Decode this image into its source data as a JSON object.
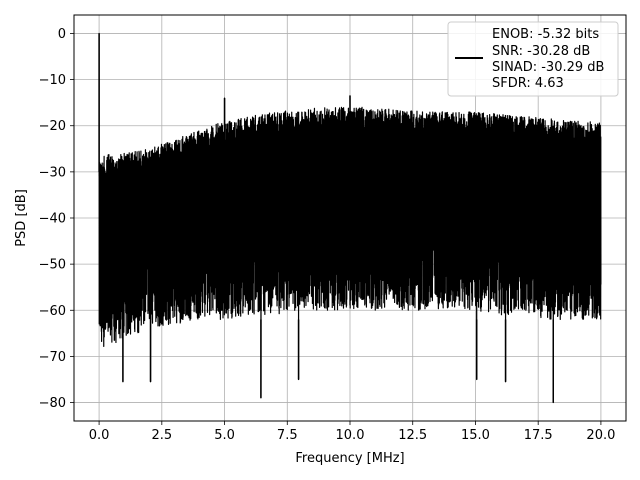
{
  "chart_data": {
    "type": "line",
    "xlabel": "Frequency [MHz]",
    "ylabel": "PSD [dB]",
    "xlim": [
      -1.0,
      21.0
    ],
    "ylim": [
      -84,
      4
    ],
    "x_ticks": [
      0.0,
      2.5,
      5.0,
      7.5,
      10.0,
      12.5,
      15.0,
      17.5,
      20.0
    ],
    "x_tick_labels": [
      "0.0",
      "2.5",
      "5.0",
      "7.5",
      "10.0",
      "12.5",
      "15.0",
      "17.5",
      "20.0"
    ],
    "y_ticks": [
      0,
      -10,
      -20,
      -30,
      -40,
      -50,
      -60,
      -70,
      -80
    ],
    "y_tick_labels": [
      "0",
      "−10",
      "−20",
      "−30",
      "−40",
      "−50",
      "−60",
      "−70",
      "−80"
    ],
    "grid": true,
    "legend_position": "top-right",
    "legend": {
      "lines": [
        "ENOB: -5.32 bits",
        "SNR: -30.28 dB",
        "SINAD: -30.29 dB",
        "SFDR: 4.63"
      ]
    },
    "series": [
      {
        "color": "#000000",
        "envelope": {
          "x": [
            0.0,
            0.5,
            1.0,
            2.0,
            3.0,
            4.0,
            5.0,
            6.0,
            7.0,
            8.0,
            9.0,
            10.0,
            11.0,
            12.0,
            13.0,
            14.0,
            15.0,
            16.0,
            17.0,
            18.0,
            19.0,
            20.0
          ],
          "upper": [
            -27,
            -26,
            -26,
            -25,
            -23,
            -21,
            -19,
            -18,
            -17,
            -16.5,
            -16,
            -16,
            -16,
            -16.5,
            -17,
            -17,
            -17,
            -17.5,
            -18,
            -18.5,
            -19,
            -19
          ],
          "lower_typical": [
            -68,
            -68,
            -66,
            -64,
            -63,
            -62,
            -62,
            -61,
            -61,
            -60,
            -60,
            -60,
            -60,
            -60,
            -60,
            -60,
            -60,
            -61,
            -61,
            -62,
            -62,
            -62
          ]
        },
        "peaks": [
          {
            "x": 0.0,
            "y": 0.0
          },
          {
            "x": 5.0,
            "y": -14.0
          },
          {
            "x": 10.0,
            "y": -13.5
          }
        ],
        "deep_dips": [
          {
            "x": 0.95,
            "y": -75.5
          },
          {
            "x": 2.05,
            "y": -75.5
          },
          {
            "x": 6.45,
            "y": -79.0
          },
          {
            "x": 7.95,
            "y": -75.0
          },
          {
            "x": 18.1,
            "y": -80.0
          },
          {
            "x": 16.2,
            "y": -75.5
          },
          {
            "x": 15.05,
            "y": -75.0
          }
        ]
      }
    ]
  }
}
